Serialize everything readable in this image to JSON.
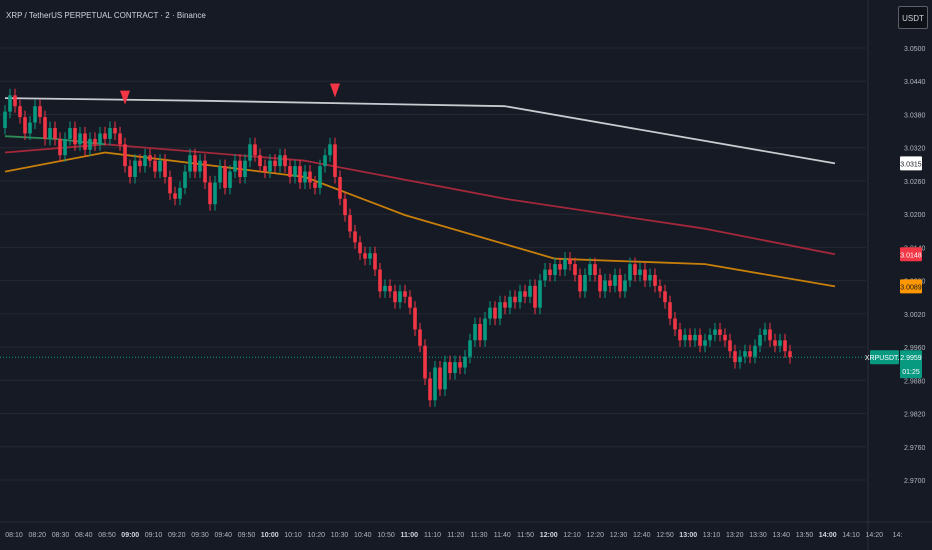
{
  "header": {
    "title": "XRP / TetherUS PERPETUAL CONTRACT · 2 · Binance",
    "currency_button": "USDT"
  },
  "chart_data": {
    "type": "candlestick",
    "symbol_tag": "XRPUSDT.P",
    "last_price": "2.9959",
    "countdown": "01:25",
    "ylim": [
      2.966,
      3.056
    ],
    "y_ticks": [
      "3.0500",
      "3.0440",
      "3.0380",
      "3.0320",
      "3.0260",
      "3.0200",
      "3.0140",
      "3.0080",
      "3.0020",
      "2.9960",
      "2.9880",
      "2.9820",
      "2.9760",
      "2.9700"
    ],
    "x_ticks": [
      {
        "label": "08:10",
        "bold": false
      },
      {
        "label": "08:20",
        "bold": false
      },
      {
        "label": "08:30",
        "bold": false
      },
      {
        "label": "08:40",
        "bold": false
      },
      {
        "label": "08:50",
        "bold": false
      },
      {
        "label": "09:00",
        "bold": true
      },
      {
        "label": "09:10",
        "bold": false
      },
      {
        "label": "09:20",
        "bold": false
      },
      {
        "label": "09:30",
        "bold": false
      },
      {
        "label": "09:40",
        "bold": false
      },
      {
        "label": "09:50",
        "bold": false
      },
      {
        "label": "10:00",
        "bold": true
      },
      {
        "label": "10:10",
        "bold": false
      },
      {
        "label": "10:20",
        "bold": false
      },
      {
        "label": "10:30",
        "bold": false
      },
      {
        "label": "10:40",
        "bold": false
      },
      {
        "label": "10:50",
        "bold": false
      },
      {
        "label": "11:00",
        "bold": true
      },
      {
        "label": "11:10",
        "bold": false
      },
      {
        "label": "11:20",
        "bold": false
      },
      {
        "label": "11:30",
        "bold": false
      },
      {
        "label": "11:40",
        "bold": false
      },
      {
        "label": "11:50",
        "bold": false
      },
      {
        "label": "12:00",
        "bold": true
      },
      {
        "label": "12:10",
        "bold": false
      },
      {
        "label": "12:20",
        "bold": false
      },
      {
        "label": "12:30",
        "bold": false
      },
      {
        "label": "12:40",
        "bold": false
      },
      {
        "label": "12:50",
        "bold": false
      },
      {
        "label": "13:00",
        "bold": true
      },
      {
        "label": "13:10",
        "bold": false
      },
      {
        "label": "13:20",
        "bold": false
      },
      {
        "label": "13:30",
        "bold": false
      },
      {
        "label": "13:40",
        "bold": false
      },
      {
        "label": "13:50",
        "bold": false
      },
      {
        "label": "14:00",
        "bold": true
      },
      {
        "label": "14:10",
        "bold": false
      },
      {
        "label": "14:20",
        "bold": false
      },
      {
        "label": "14:",
        "bold": false
      }
    ],
    "price_tags": [
      {
        "label": "3.0315",
        "value": 3.0315,
        "bg": "#ffffff",
        "fg": "#131722"
      },
      {
        "label": "3.0148",
        "value": 3.0148,
        "bg": "#f23645",
        "fg": "#ffffff"
      },
      {
        "label": "3.0089",
        "value": 3.0089,
        "bg": "#ff9800",
        "fg": "#131722"
      }
    ],
    "colors": {
      "up": "#089981",
      "down": "#f23645",
      "ma_white": "#c9cbd1",
      "ma_red": "#a3283a",
      "ma_orange": "#c87f0a",
      "ma_green": "#2e8b57",
      "price_line": "#089981"
    },
    "moving_averages": [
      {
        "color_key": "ma_white",
        "x": [
          0,
          40,
          100,
          166
        ],
        "y": [
          3.0435,
          3.043,
          3.042,
          3.0315
        ]
      },
      {
        "color_key": "ma_red",
        "x": [
          0,
          20,
          60,
          100,
          140,
          166
        ],
        "y": [
          3.0335,
          3.035,
          3.032,
          3.025,
          3.0195,
          3.0148
        ]
      },
      {
        "color_key": "ma_orange",
        "x": [
          0,
          20,
          60,
          80,
          110,
          140,
          166
        ],
        "y": [
          3.03,
          3.0335,
          3.029,
          3.022,
          3.014,
          3.013,
          3.0089
        ]
      },
      {
        "color_key": "ma_green",
        "x": [
          0,
          10,
          20
        ],
        "y": [
          3.0365,
          3.036,
          3.035
        ]
      }
    ],
    "markers": [
      {
        "index": 24,
        "value": 3.0423
      },
      {
        "index": 66,
        "value": 3.0436
      }
    ],
    "candles": [
      [
        3.038,
        3.041
      ],
      [
        3.041,
        3.044
      ],
      [
        3.044,
        3.042
      ],
      [
        3.042,
        3.04
      ],
      [
        3.04,
        3.037
      ],
      [
        3.037,
        3.039
      ],
      [
        3.039,
        3.042
      ],
      [
        3.042,
        3.04
      ],
      [
        3.04,
        3.036
      ],
      [
        3.036,
        3.038
      ],
      [
        3.038,
        3.036
      ],
      [
        3.036,
        3.033
      ],
      [
        3.033,
        3.036
      ],
      [
        3.036,
        3.038
      ],
      [
        3.038,
        3.035
      ],
      [
        3.035,
        3.037
      ],
      [
        3.037,
        3.034
      ],
      [
        3.034,
        3.036
      ],
      [
        3.036,
        3.035
      ],
      [
        3.035,
        3.037
      ],
      [
        3.037,
        3.036
      ],
      [
        3.036,
        3.038
      ],
      [
        3.038,
        3.037
      ],
      [
        3.037,
        3.035
      ],
      [
        3.035,
        3.031
      ],
      [
        3.031,
        3.029
      ],
      [
        3.029,
        3.032
      ],
      [
        3.032,
        3.031
      ],
      [
        3.031,
        3.033
      ],
      [
        3.033,
        3.032
      ],
      [
        3.032,
        3.03
      ],
      [
        3.03,
        3.032
      ],
      [
        3.032,
        3.029
      ],
      [
        3.029,
        3.026
      ],
      [
        3.026,
        3.025
      ],
      [
        3.025,
        3.027
      ],
      [
        3.027,
        3.03
      ],
      [
        3.03,
        3.033
      ],
      [
        3.033,
        3.03
      ],
      [
        3.03,
        3.032
      ],
      [
        3.032,
        3.028
      ],
      [
        3.028,
        3.024
      ],
      [
        3.024,
        3.028
      ],
      [
        3.028,
        3.031
      ],
      [
        3.031,
        3.027
      ],
      [
        3.027,
        3.03
      ],
      [
        3.03,
        3.032
      ],
      [
        3.032,
        3.029
      ],
      [
        3.029,
        3.032
      ],
      [
        3.032,
        3.035
      ],
      [
        3.035,
        3.033
      ],
      [
        3.033,
        3.031
      ],
      [
        3.031,
        3.03
      ],
      [
        3.03,
        3.032
      ],
      [
        3.032,
        3.031
      ],
      [
        3.031,
        3.033
      ],
      [
        3.033,
        3.031
      ],
      [
        3.031,
        3.029
      ],
      [
        3.029,
        3.031
      ],
      [
        3.031,
        3.028
      ],
      [
        3.028,
        3.03
      ],
      [
        3.03,
        3.028
      ],
      [
        3.028,
        3.027
      ],
      [
        3.027,
        3.031
      ],
      [
        3.031,
        3.033
      ],
      [
        3.033,
        3.035
      ],
      [
        3.035,
        3.029
      ],
      [
        3.029,
        3.025
      ],
      [
        3.025,
        3.022
      ],
      [
        3.022,
        3.019
      ],
      [
        3.019,
        3.017
      ],
      [
        3.017,
        3.015
      ],
      [
        3.015,
        3.014
      ],
      [
        3.014,
        3.015
      ],
      [
        3.015,
        3.012
      ],
      [
        3.012,
        3.008
      ],
      [
        3.008,
        3.009
      ],
      [
        3.009,
        3.008
      ],
      [
        3.008,
        3.006
      ],
      [
        3.006,
        3.008
      ],
      [
        3.008,
        3.007
      ],
      [
        3.007,
        3.005
      ],
      [
        3.005,
        3.001
      ],
      [
        3.001,
        2.998
      ],
      [
        2.998,
        2.992
      ],
      [
        2.992,
        2.988
      ],
      [
        2.988,
        2.994
      ],
      [
        2.994,
        2.99
      ],
      [
        2.99,
        2.995
      ],
      [
        2.995,
        2.993
      ],
      [
        2.993,
        2.995
      ],
      [
        2.995,
        2.994
      ],
      [
        2.994,
        2.996
      ],
      [
        2.996,
        2.999
      ],
      [
        2.999,
        3.002
      ],
      [
        3.002,
        2.999
      ],
      [
        2.999,
        3.003
      ],
      [
        3.003,
        3.005
      ],
      [
        3.005,
        3.003
      ],
      [
        3.003,
        3.006
      ],
      [
        3.006,
        3.005
      ],
      [
        3.005,
        3.007
      ],
      [
        3.007,
        3.006
      ],
      [
        3.006,
        3.008
      ],
      [
        3.008,
        3.007
      ],
      [
        3.007,
        3.009
      ],
      [
        3.009,
        3.005
      ],
      [
        3.005,
        3.01
      ],
      [
        3.01,
        3.012
      ],
      [
        3.012,
        3.011
      ],
      [
        3.011,
        3.013
      ],
      [
        3.013,
        3.012
      ],
      [
        3.012,
        3.014
      ],
      [
        3.014,
        3.013
      ],
      [
        3.013,
        3.011
      ],
      [
        3.011,
        3.008
      ],
      [
        3.008,
        3.011
      ],
      [
        3.011,
        3.013
      ],
      [
        3.013,
        3.011
      ],
      [
        3.011,
        3.008
      ],
      [
        3.008,
        3.01
      ],
      [
        3.01,
        3.009
      ],
      [
        3.009,
        3.011
      ],
      [
        3.011,
        3.008
      ],
      [
        3.008,
        3.01
      ],
      [
        3.01,
        3.013
      ],
      [
        3.013,
        3.011
      ],
      [
        3.011,
        3.012
      ],
      [
        3.012,
        3.01
      ],
      [
        3.01,
        3.011
      ],
      [
        3.011,
        3.009
      ],
      [
        3.009,
        3.008
      ],
      [
        3.008,
        3.006
      ],
      [
        3.006,
        3.003
      ],
      [
        3.003,
        3.001
      ],
      [
        3.001,
        2.999
      ],
      [
        2.999,
        3.0
      ],
      [
        3.0,
        2.999
      ],
      [
        2.999,
        3.0
      ],
      [
        3.0,
        2.998
      ],
      [
        2.998,
        2.999
      ],
      [
        2.999,
        3.0
      ],
      [
        3.0,
        3.001
      ],
      [
        3.001,
        3.0
      ],
      [
        3.0,
        2.999
      ],
      [
        2.999,
        2.997
      ],
      [
        2.997,
        2.995
      ],
      [
        2.995,
        2.996
      ],
      [
        2.996,
        2.997
      ],
      [
        2.997,
        2.996
      ],
      [
        2.996,
        2.998
      ],
      [
        2.998,
        3.0
      ],
      [
        3.0,
        3.001
      ],
      [
        3.001,
        2.999
      ],
      [
        2.999,
        2.998
      ],
      [
        2.998,
        2.999
      ],
      [
        2.999,
        2.997
      ],
      [
        2.997,
        2.9959
      ]
    ]
  }
}
